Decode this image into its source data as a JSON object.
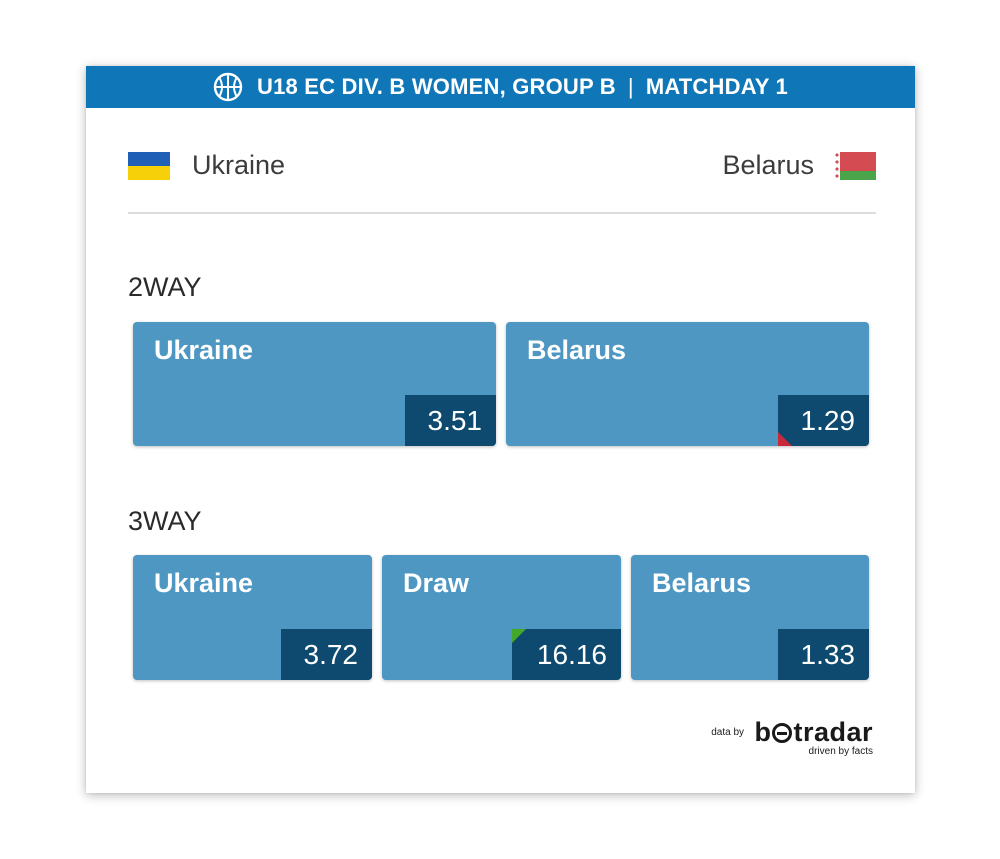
{
  "header": {
    "competition": "U18 EC DIV. B WOMEN, GROUP B",
    "separator": "|",
    "matchday": "MATCHDAY 1",
    "icon": "basketball-icon",
    "background_color": "#0f77b8"
  },
  "teams": {
    "home": {
      "name": "Ukraine",
      "flag_icon": "ukraine-flag-icon"
    },
    "away": {
      "name": "Belarus",
      "flag_icon": "belarus-flag-icon"
    }
  },
  "markets": {
    "two_way": {
      "label": "2WAY",
      "outcomes": [
        {
          "name": "Ukraine",
          "odds": "3.51",
          "trend": "none"
        },
        {
          "name": "Belarus",
          "odds": "1.29",
          "trend": "down"
        }
      ]
    },
    "three_way": {
      "label": "3WAY",
      "outcomes": [
        {
          "name": "Ukraine",
          "odds": "3.72",
          "trend": "none"
        },
        {
          "name": "Draw",
          "odds": "16.16",
          "trend": "up"
        },
        {
          "name": "Belarus",
          "odds": "1.33",
          "trend": "none"
        }
      ]
    }
  },
  "colors": {
    "outcome_button": "#4e97c3",
    "odds_box": "#0e4a6f",
    "trend_down": "#c8283a",
    "trend_up": "#44a82b"
  },
  "footer": {
    "data_by": "data by",
    "brand_prefix": "b",
    "brand_suffix": "tradar",
    "tagline": "driven by facts"
  }
}
